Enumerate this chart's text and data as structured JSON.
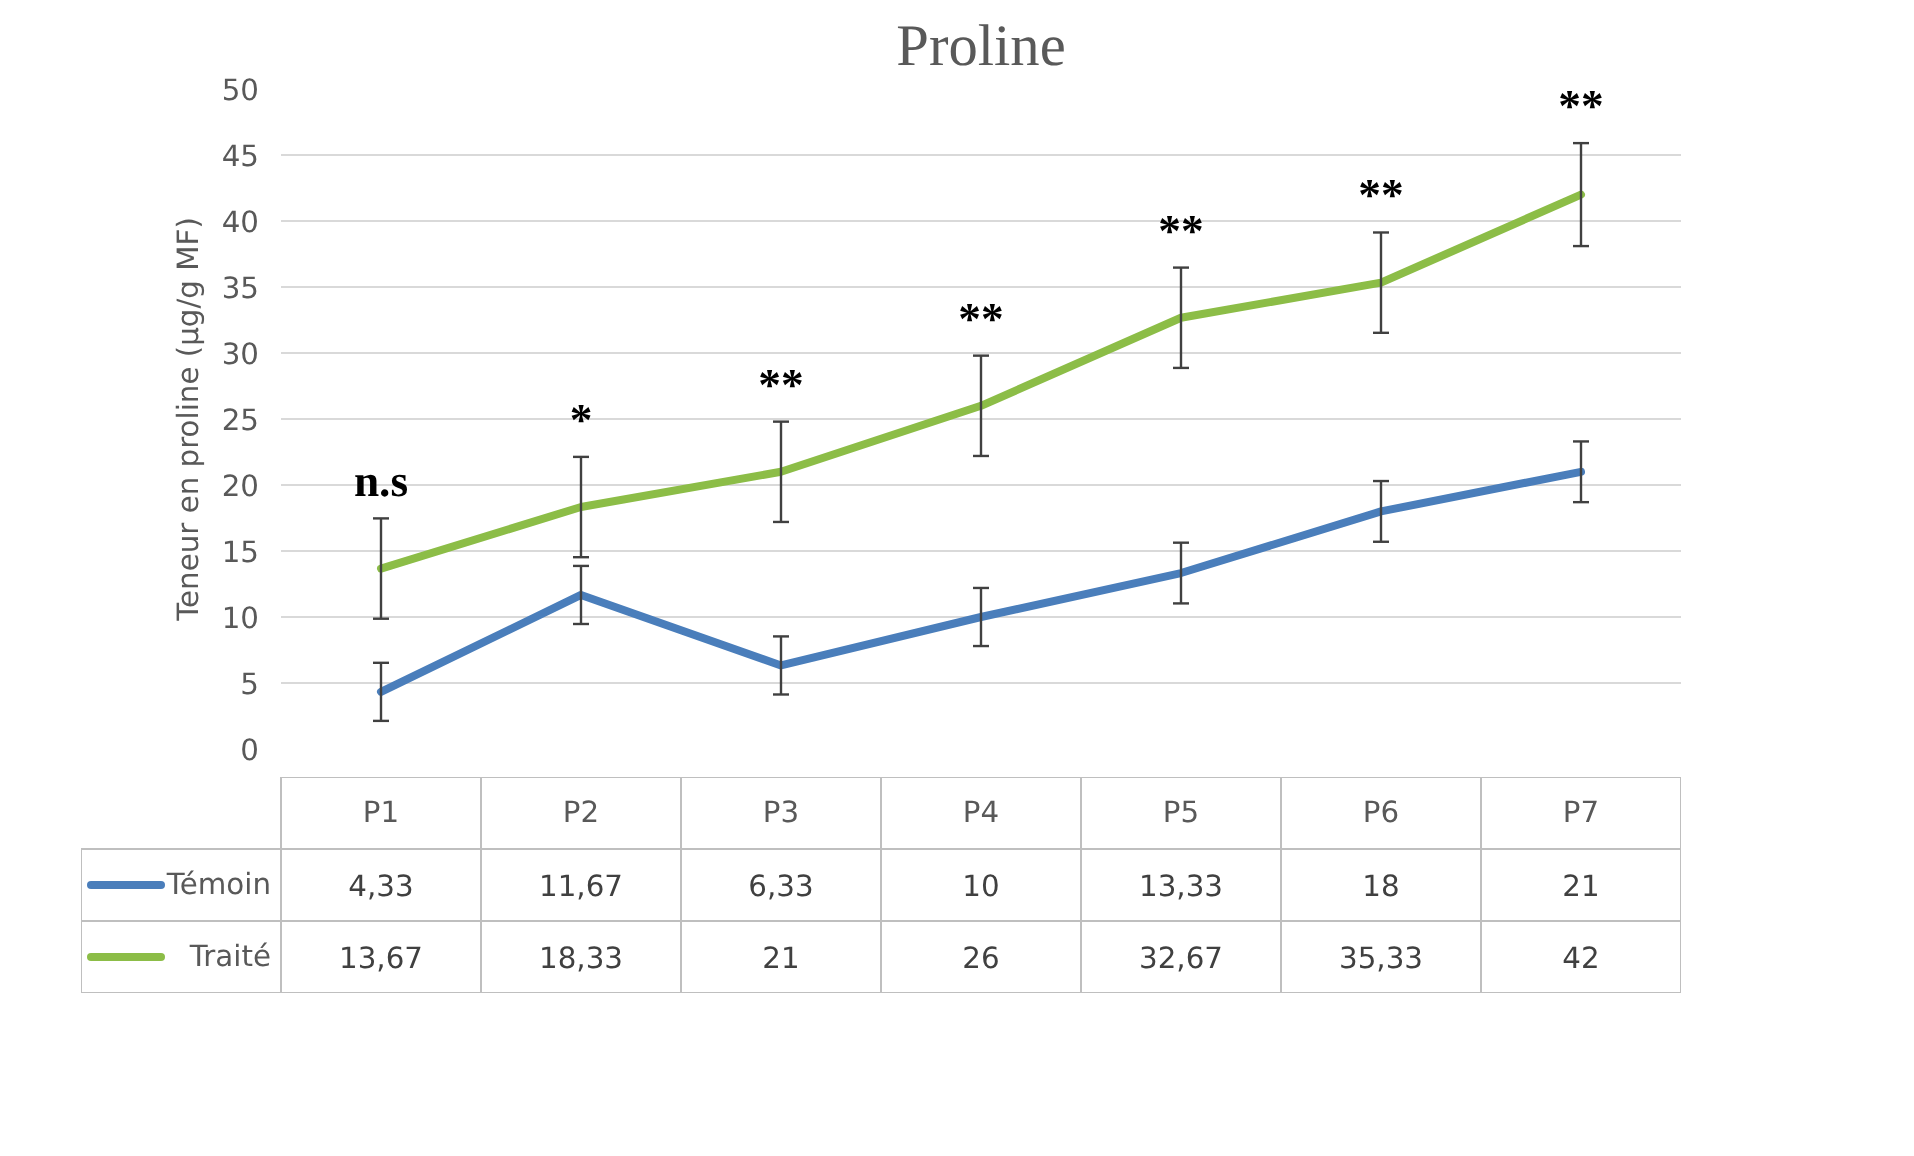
{
  "chart_data": {
    "type": "line",
    "title": "Proline",
    "ylabel": "Teneur en proline (µg/g MF)",
    "categories": [
      "P1",
      "P2",
      "P3",
      "P4",
      "P5",
      "P6",
      "P7"
    ],
    "series": [
      {
        "name": "Témoin",
        "color": "#4a7ebb",
        "values": [
          4.33,
          11.67,
          6.33,
          10,
          13.33,
          18,
          21
        ],
        "errors": [
          2.2,
          2.2,
          2.2,
          2.2,
          2.3,
          2.3,
          2.3
        ],
        "value_labels": [
          "4,33",
          "11,67",
          "6,33",
          "10",
          "13,33",
          "18",
          "21"
        ]
      },
      {
        "name": "Traité",
        "color": "#8cbd47",
        "values": [
          13.67,
          18.33,
          21,
          26,
          32.67,
          35.33,
          42
        ],
        "errors": [
          3.8,
          3.8,
          3.8,
          3.8,
          3.8,
          3.8,
          3.9
        ],
        "value_labels": [
          "13,67",
          "18,33",
          "21",
          "26",
          "32,67",
          "35,33",
          "42"
        ]
      }
    ],
    "ylim": [
      0,
      50
    ],
    "yticks": [
      0,
      5,
      10,
      15,
      20,
      25,
      30,
      35,
      40,
      45,
      50
    ],
    "grid": "y",
    "legend": "bottom left",
    "annotations": [
      "n.s",
      "*",
      "**",
      "**",
      "**",
      "**",
      "**"
    ]
  }
}
